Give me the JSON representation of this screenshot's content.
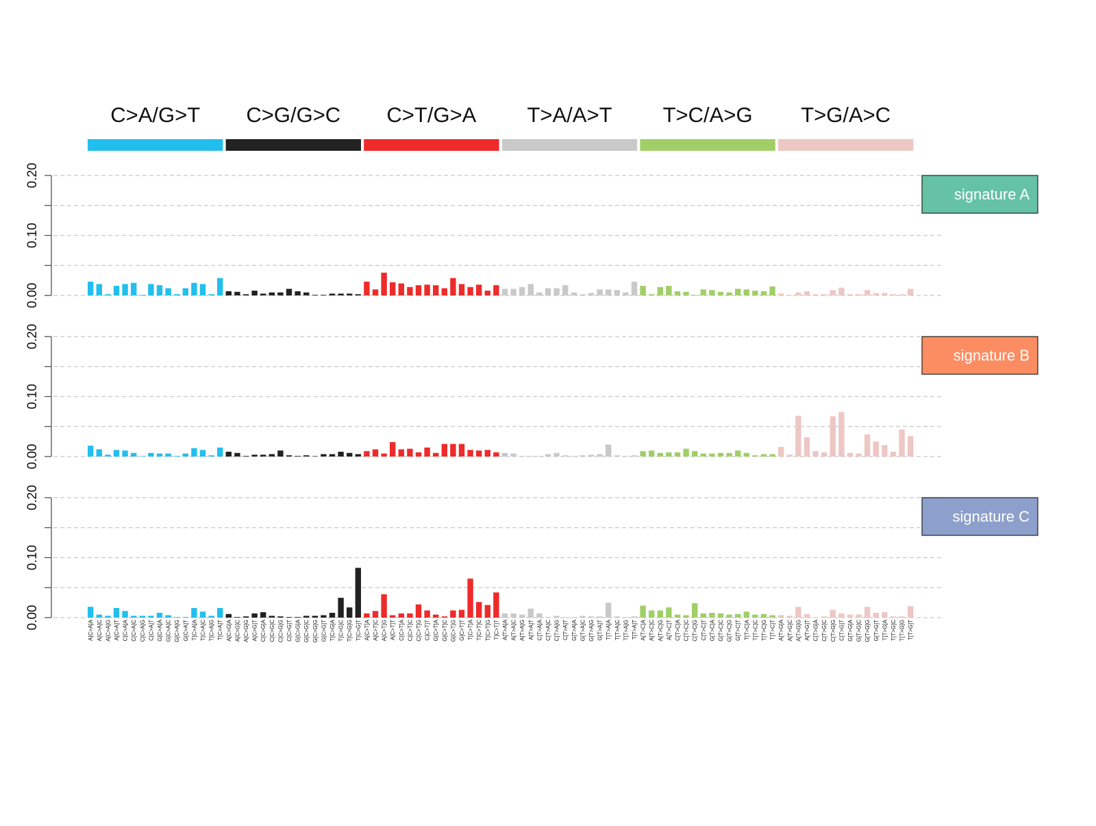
{
  "chart_data": {
    "type": "bar",
    "ylim": [
      0,
      0.2
    ],
    "ytick_labels": [
      "0.00",
      "0.10",
      "0.20"
    ],
    "grid": true,
    "mutation_groups": [
      {
        "label": "C>A/G>T",
        "color": "#22bfee"
      },
      {
        "label": "C>G/G>C",
        "color": "#222222"
      },
      {
        "label": "C>T/G>A",
        "color": "#ee2b2b"
      },
      {
        "label": "T>A/A>T",
        "color": "#c9c9c9"
      },
      {
        "label": "T>C/A>G",
        "color": "#a0cf68"
      },
      {
        "label": "T>G/A>C",
        "color": "#edc7c4"
      }
    ],
    "categories": [
      "A[C>A]A",
      "A[C>A]C",
      "A[C>A]G",
      "A[C>A]T",
      "C[C>A]A",
      "C[C>A]C",
      "C[C>A]G",
      "C[C>A]T",
      "G[C>A]A",
      "G[C>A]C",
      "G[C>A]G",
      "G[C>A]T",
      "T[C>A]A",
      "T[C>A]C",
      "T[C>A]G",
      "T[C>A]T",
      "A[C>G]A",
      "A[C>G]C",
      "A[C>G]G",
      "A[C>G]T",
      "C[C>G]A",
      "C[C>G]C",
      "C[C>G]G",
      "C[C>G]T",
      "G[C>G]A",
      "G[C>G]C",
      "G[C>G]G",
      "G[C>G]T",
      "T[C>G]A",
      "T[C>G]C",
      "T[C>G]G",
      "T[C>G]T",
      "A[C>T]A",
      "A[C>T]C",
      "A[C>T]G",
      "A[C>T]T",
      "C[C>T]A",
      "C[C>T]C",
      "C[C>T]G",
      "C[C>T]T",
      "G[C>T]A",
      "G[C>T]C",
      "G[C>T]G",
      "G[C>T]T",
      "T[C>T]A",
      "T[C>T]C",
      "T[C>T]G",
      "T[C>T]T",
      "A[T>A]A",
      "A[T>A]C",
      "A[T>A]G",
      "A[T>A]T",
      "C[T>A]A",
      "C[T>A]C",
      "C[T>A]G",
      "C[T>A]T",
      "G[T>A]A",
      "G[T>A]C",
      "G[T>A]G",
      "G[T>A]T",
      "T[T>A]A",
      "T[T>A]C",
      "T[T>A]G",
      "T[T>A]T",
      "A[T>C]A",
      "A[T>C]C",
      "A[T>C]G",
      "A[T>C]T",
      "C[T>C]A",
      "C[T>C]C",
      "C[T>C]G",
      "C[T>C]T",
      "G[T>C]A",
      "G[T>C]C",
      "G[T>C]G",
      "G[T>C]T",
      "T[T>C]A",
      "T[T>C]C",
      "T[T>C]G",
      "T[T>C]T",
      "A[T>G]A",
      "A[T>G]C",
      "A[T>G]G",
      "A[T>G]T",
      "C[T>G]A",
      "C[T>G]C",
      "C[T>G]G",
      "C[T>G]T",
      "G[T>G]A",
      "G[T>G]C",
      "G[T>G]G",
      "G[T>G]T",
      "T[T>G]A",
      "T[T>G]C",
      "T[T>G]G",
      "T[T>G]T"
    ],
    "series": [
      {
        "name": "signature A",
        "label_color": "#66c2a5",
        "values": [
          0.023,
          0.019,
          0.002,
          0.016,
          0.019,
          0.021,
          0.001,
          0.019,
          0.017,
          0.012,
          0.002,
          0.012,
          0.021,
          0.019,
          0.002,
          0.029,
          0.007,
          0.006,
          0.002,
          0.008,
          0.003,
          0.005,
          0.005,
          0.011,
          0.007,
          0.005,
          0.001,
          0.001,
          0.003,
          0.003,
          0.003,
          0.002,
          0.023,
          0.01,
          0.038,
          0.022,
          0.02,
          0.014,
          0.017,
          0.018,
          0.017,
          0.012,
          0.029,
          0.019,
          0.014,
          0.018,
          0.008,
          0.017,
          0.011,
          0.011,
          0.014,
          0.019,
          0.005,
          0.012,
          0.012,
          0.017,
          0.005,
          0.002,
          0.004,
          0.01,
          0.01,
          0.009,
          0.005,
          0.023,
          0.016,
          0.002,
          0.014,
          0.016,
          0.007,
          0.006,
          0.001,
          0.01,
          0.009,
          0.006,
          0.005,
          0.011,
          0.01,
          0.008,
          0.007,
          0.015,
          0.003,
          0.001,
          0.005,
          0.007,
          0.002,
          0.002,
          0.009,
          0.013,
          0.002,
          0.002,
          0.009,
          0.004,
          0.004,
          0.002,
          0.002,
          0.011
        ]
      },
      {
        "name": "signature B",
        "label_color": "#fc8d62",
        "values": [
          0.018,
          0.012,
          0.003,
          0.011,
          0.01,
          0.006,
          0.0,
          0.006,
          0.005,
          0.005,
          0.001,
          0.005,
          0.014,
          0.011,
          0.002,
          0.015,
          0.008,
          0.006,
          0.001,
          0.003,
          0.003,
          0.004,
          0.01,
          0.002,
          0.001,
          0.002,
          0.0,
          0.004,
          0.004,
          0.008,
          0.006,
          0.004,
          0.009,
          0.012,
          0.005,
          0.024,
          0.012,
          0.013,
          0.007,
          0.015,
          0.006,
          0.021,
          0.021,
          0.021,
          0.011,
          0.01,
          0.011,
          0.007,
          0.006,
          0.005,
          0.001,
          0.001,
          0.001,
          0.004,
          0.006,
          0.002,
          0.001,
          0.002,
          0.003,
          0.004,
          0.02,
          0.002,
          0.001,
          0.002,
          0.009,
          0.01,
          0.006,
          0.007,
          0.007,
          0.013,
          0.009,
          0.005,
          0.005,
          0.006,
          0.006,
          0.01,
          0.006,
          0.002,
          0.004,
          0.004,
          0.016,
          0.003,
          0.068,
          0.032,
          0.009,
          0.007,
          0.067,
          0.074,
          0.006,
          0.005,
          0.037,
          0.025,
          0.019,
          0.008,
          0.045,
          0.034
        ]
      },
      {
        "name": "signature C",
        "label_color": "#8da0cb",
        "values": [
          0.018,
          0.005,
          0.003,
          0.016,
          0.011,
          0.003,
          0.003,
          0.003,
          0.008,
          0.004,
          0.001,
          0.001,
          0.016,
          0.01,
          0.003,
          0.016,
          0.006,
          0.001,
          0.002,
          0.007,
          0.009,
          0.003,
          0.002,
          0.001,
          0.001,
          0.003,
          0.003,
          0.004,
          0.008,
          0.033,
          0.017,
          0.083,
          0.007,
          0.011,
          0.039,
          0.004,
          0.007,
          0.007,
          0.022,
          0.012,
          0.005,
          0.002,
          0.012,
          0.013,
          0.065,
          0.026,
          0.021,
          0.042,
          0.007,
          0.007,
          0.005,
          0.015,
          0.007,
          0.001,
          0.003,
          0.001,
          0.001,
          0.003,
          0.002,
          0.002,
          0.025,
          0.002,
          0.001,
          0.002,
          0.02,
          0.012,
          0.012,
          0.017,
          0.005,
          0.004,
          0.024,
          0.007,
          0.008,
          0.007,
          0.005,
          0.006,
          0.01,
          0.005,
          0.006,
          0.004,
          0.004,
          0.003,
          0.018,
          0.006,
          0.001,
          0.002,
          0.013,
          0.007,
          0.005,
          0.005,
          0.018,
          0.008,
          0.009,
          0.002,
          0.002,
          0.019
        ]
      }
    ]
  }
}
